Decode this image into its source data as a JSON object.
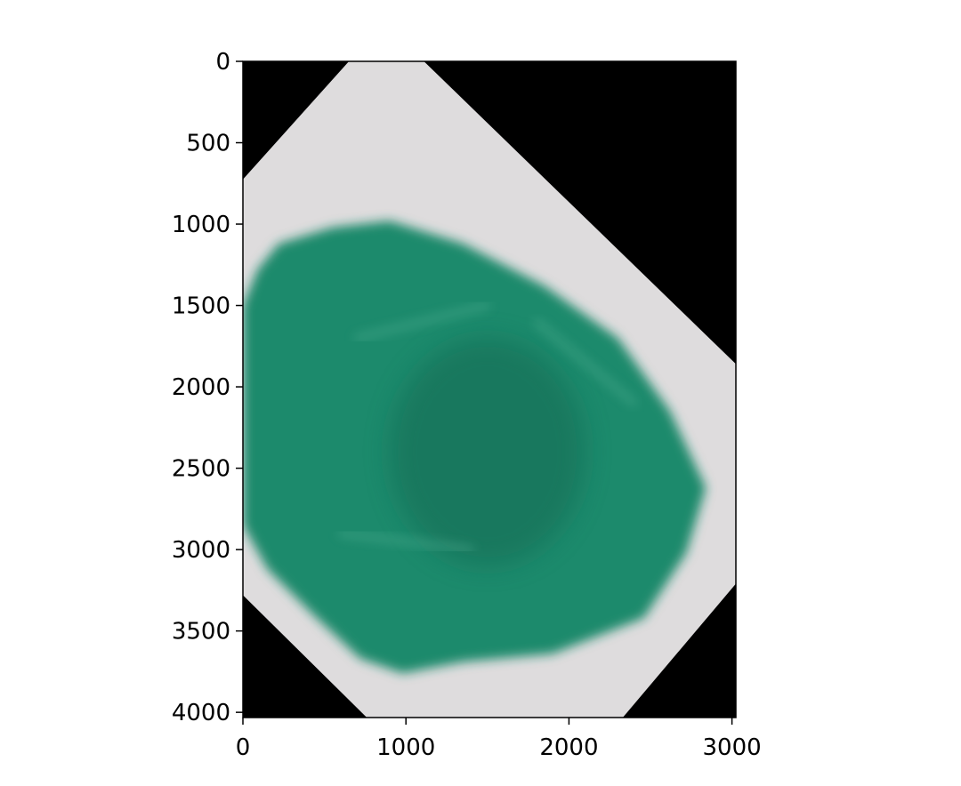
{
  "chart_data": {
    "type": "image",
    "xlim": [
      0,
      3024
    ],
    "ylim": [
      4032,
      0
    ],
    "x_ticks": [
      0,
      1000,
      2000,
      3000
    ],
    "y_ticks": [
      0,
      500,
      1000,
      1500,
      2000,
      2500,
      3000,
      3500,
      4000
    ],
    "x_tick_labels": [
      "0",
      "1000",
      "2000",
      "3000"
    ],
    "y_tick_labels": [
      "0",
      "500",
      "1000",
      "1500",
      "2000",
      "2500",
      "3000",
      "3500",
      "4000"
    ],
    "grid": false,
    "image_content": {
      "background_color": "#000000",
      "paper_color": "#dedcdd",
      "paper_outline": [
        [
          0,
          725
        ],
        [
          650,
          0
        ],
        [
          1110,
          0
        ],
        [
          3024,
          1860
        ],
        [
          3024,
          3210
        ],
        [
          2330,
          4032
        ],
        [
          760,
          4032
        ],
        [
          0,
          3280
        ]
      ],
      "blob_color": "#1f8a6c",
      "blob_dark_color": "#156b52",
      "blob_outline": [
        [
          220,
          1120
        ],
        [
          550,
          1020
        ],
        [
          900,
          980
        ],
        [
          1350,
          1120
        ],
        [
          1850,
          1380
        ],
        [
          2300,
          1700
        ],
        [
          2620,
          2150
        ],
        [
          2840,
          2620
        ],
        [
          2720,
          3020
        ],
        [
          2460,
          3420
        ],
        [
          1900,
          3640
        ],
        [
          1350,
          3690
        ],
        [
          980,
          3760
        ],
        [
          720,
          3670
        ],
        [
          430,
          3400
        ],
        [
          150,
          3120
        ],
        [
          0,
          2850
        ],
        [
          0,
          1500
        ],
        [
          90,
          1280
        ]
      ]
    }
  }
}
